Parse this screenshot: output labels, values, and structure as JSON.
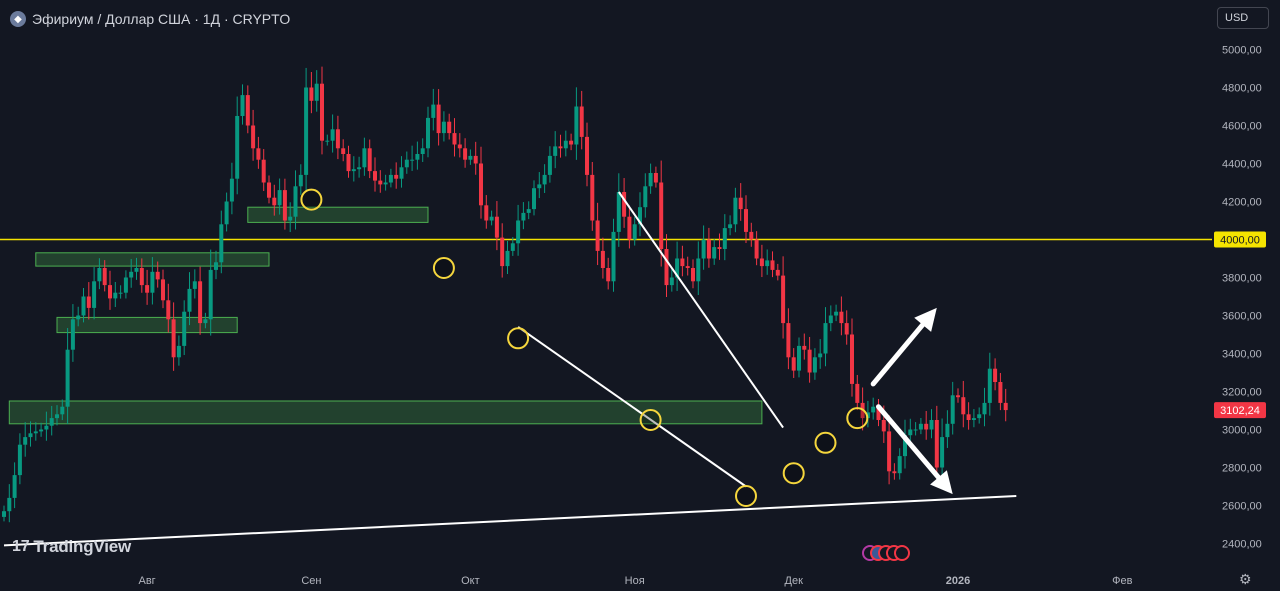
{
  "header": {
    "symbol_icon": "ethereum-icon",
    "title": "Эфириум / Доллар США · 1Д · CRYPTO"
  },
  "currency_button": "USD",
  "watermark": "TradingView",
  "colors": {
    "background": "#131722",
    "up": "#089981",
    "down": "#f23645",
    "level_line": "#f5e400",
    "zone_fill": "rgba(76,175,80,0.28)",
    "zone_border": "#4caf50",
    "annotation": "#ffffff",
    "circle": "#f5d63d"
  },
  "chart_data": {
    "type": "candlestick",
    "y_axis": {
      "min": 2300,
      "max": 5100,
      "ticks": [
        "5000,00",
        "4800,00",
        "4600,00",
        "4400,00",
        "4200,00",
        "4000,00",
        "3800,00",
        "3600,00",
        "3400,00",
        "3200,00",
        "3000,00",
        "2800,00",
        "2600,00",
        "2400,00"
      ],
      "tick_values": [
        5000,
        4800,
        4600,
        4400,
        4200,
        4000,
        3800,
        3600,
        3400,
        3200,
        3000,
        2800,
        2600,
        2400
      ]
    },
    "x_axis": {
      "labels": [
        "Авг",
        "Сен",
        "Окт",
        "Ноя",
        "Дек",
        "2026",
        "Фев"
      ],
      "label_dates": [
        "2025-08-01",
        "2025-09-01",
        "2025-10-01",
        "2025-11-01",
        "2025-12-01",
        "2026-01-01",
        "2026-02-01"
      ]
    },
    "date_range": [
      "2025-07-05",
      "2026-02-10"
    ],
    "candles_start_date": "2025-07-05",
    "closes": [
      2570,
      2640,
      2760,
      2920,
      2960,
      2980,
      2990,
      3000,
      3020,
      3060,
      3080,
      3120,
      3420,
      3580,
      3600,
      3700,
      3640,
      3780,
      3850,
      3760,
      3690,
      3720,
      3720,
      3800,
      3830,
      3850,
      3760,
      3720,
      3830,
      3790,
      3680,
      3580,
      3380,
      3440,
      3620,
      3740,
      3780,
      3560,
      3580,
      3840,
      3880,
      4080,
      4200,
      4320,
      4650,
      4760,
      4600,
      4480,
      4420,
      4300,
      4220,
      4180,
      4260,
      4100,
      4120,
      4280,
      4340,
      4800,
      4730,
      4820,
      4520,
      4520,
      4580,
      4480,
      4450,
      4360,
      4370,
      4380,
      4480,
      4360,
      4310,
      4290,
      4300,
      4340,
      4320,
      4380,
      4420,
      4420,
      4450,
      4480,
      4640,
      4710,
      4560,
      4620,
      4560,
      4500,
      4480,
      4420,
      4440,
      4400,
      4180,
      4100,
      4120,
      4010,
      3860,
      3940,
      3980,
      4100,
      4140,
      4160,
      4270,
      4290,
      4340,
      4440,
      4490,
      4480,
      4520,
      4500,
      4700,
      4540,
      4340,
      4100,
      3940,
      3850,
      3780,
      4040,
      4250,
      4120,
      4000,
      4080,
      4170,
      4280,
      4350,
      4300,
      3950,
      3760,
      3800,
      3900,
      3860,
      3850,
      3780,
      3900,
      4000,
      3900,
      3960,
      3950,
      4060,
      4080,
      4220,
      4160,
      4040,
      4000,
      3900,
      3860,
      3890,
      3840,
      3810,
      3560,
      3380,
      3310,
      3440,
      3420,
      3300,
      3380,
      3400,
      3560,
      3600,
      3620,
      3560,
      3500,
      3240,
      3140,
      3060,
      3090,
      3120,
      3050,
      2990,
      2780,
      2770,
      2860,
      2970,
      3000,
      3000,
      3030,
      3000,
      3050,
      2800,
      2960,
      3030,
      3180,
      3170,
      3080,
      3050,
      3060,
      3080,
      3140,
      3320,
      3250,
      3140,
      3102.24
    ],
    "current_price": "3102,24",
    "levels": [
      {
        "label": "4000,00",
        "value": 4000
      }
    ],
    "zones": [
      {
        "start": "2025-07-06",
        "end": "2025-11-25",
        "low": 3030,
        "high": 3150
      },
      {
        "start": "2025-07-15",
        "end": "2025-08-18",
        "low": 3510,
        "high": 3590
      },
      {
        "start": "2025-07-11",
        "end": "2025-08-24",
        "low": 3860,
        "high": 3930
      },
      {
        "start": "2025-08-20",
        "end": "2025-09-23",
        "low": 4090,
        "high": 4170
      }
    ],
    "trendlines": [
      {
        "from": {
          "date": "2025-07-05",
          "price": 2390
        },
        "to": {
          "date": "2026-01-12",
          "price": 2650
        }
      },
      {
        "from": {
          "date": "2025-10-10",
          "price": 3540
        },
        "to": {
          "date": "2025-11-22",
          "price": 2700
        }
      },
      {
        "from": {
          "date": "2025-10-29",
          "price": 4250
        },
        "to": {
          "date": "2025-11-29",
          "price": 3010
        }
      }
    ],
    "circles": [
      {
        "date": "2025-09-01",
        "price": 4210
      },
      {
        "date": "2025-09-26",
        "price": 3850
      },
      {
        "date": "2025-10-10",
        "price": 3480
      },
      {
        "date": "2025-11-04",
        "price": 3050
      },
      {
        "date": "2025-11-22",
        "price": 2650
      },
      {
        "date": "2025-12-01",
        "price": 2770
      },
      {
        "date": "2025-12-07",
        "price": 2930
      },
      {
        "date": "2025-12-13",
        "price": 3060
      }
    ],
    "arrows": [
      {
        "direction": "up",
        "from": {
          "date": "2025-12-16",
          "price": 3240
        },
        "to": {
          "date": "2025-12-28",
          "price": 3640
        }
      },
      {
        "direction": "down",
        "from": {
          "date": "2025-12-17",
          "price": 3120
        },
        "to": {
          "date": "2025-12-31",
          "price": 2660
        }
      }
    ]
  },
  "events_icons": [
    "calendar-event-icon",
    "us-flag-icon",
    "economic-event-icon",
    "economic-event-icon",
    "economic-event-icon"
  ],
  "settings_icon": "gear-icon"
}
